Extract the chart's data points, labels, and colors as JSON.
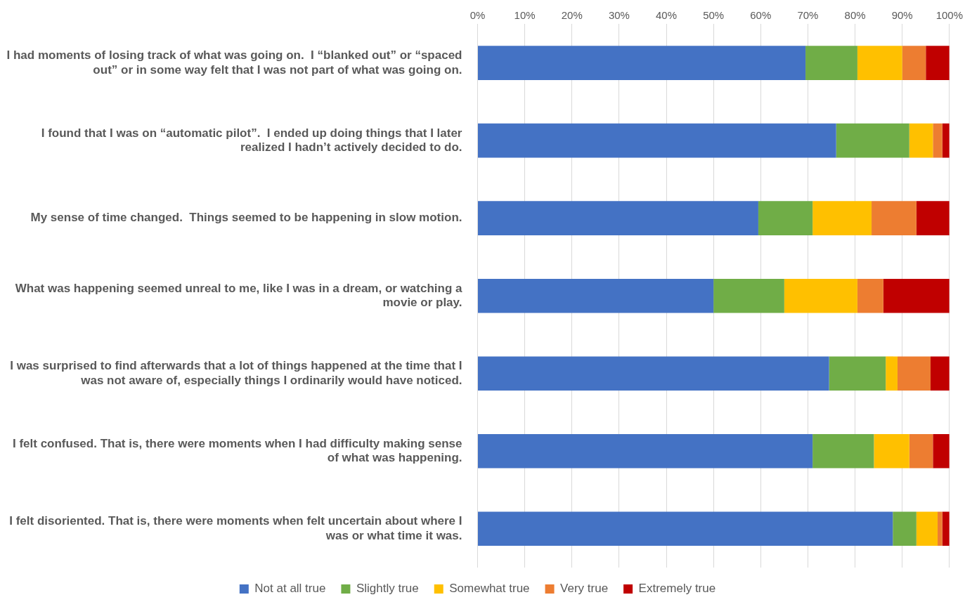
{
  "chart_data": {
    "type": "bar",
    "orientation": "horizontal",
    "stacked": true,
    "categories": [
      "I had moments of losing track of what was going on.  I “blanked out” or “spaced out” or in some way felt that I was not part of what was going on.",
      "I found that I was on “automatic pilot”.  I ended up doing things that I later realized I hadn’t actively decided to do.",
      "My sense of time changed.  Things seemed to be happening in slow motion.",
      "What was happening seemed unreal to me, like I was in a dream, or watching a movie or play.",
      "I was surprised to find afterwards that a lot of things happened at the time that I was not aware of, especially things I ordinarily would have noticed.",
      "I felt confused. That is, there were moments when I had difficulty making sense of what was happening.",
      "I felt disoriented. That is, there were moments when felt uncertain about where I was or what time it was."
    ],
    "series": [
      {
        "name": "Not at all true",
        "color": "#4472c4",
        "values": [
          69.5,
          76,
          59.5,
          50,
          74.5,
          71,
          88
        ]
      },
      {
        "name": "Slightly true",
        "color": "#70ad47",
        "values": [
          11,
          15.5,
          11.5,
          15,
          12,
          13,
          5
        ]
      },
      {
        "name": "Somewhat true",
        "color": "#ffc000",
        "values": [
          9.5,
          5,
          12.5,
          15.5,
          2.5,
          7.5,
          4.5
        ]
      },
      {
        "name": "Very true",
        "color": "#ed7d31",
        "values": [
          5,
          2,
          9.5,
          5.5,
          7,
          5,
          1
        ]
      },
      {
        "name": "Extremely true",
        "color": "#c00000",
        "values": [
          5,
          1.5,
          7,
          14,
          4,
          3.5,
          1.5
        ]
      }
    ],
    "xlim": [
      0,
      100
    ],
    "xticks": [
      {
        "value": 0,
        "label": "0%"
      },
      {
        "value": 10,
        "label": "10%"
      },
      {
        "value": 20,
        "label": "20%"
      },
      {
        "value": 30,
        "label": "30%"
      },
      {
        "value": 40,
        "label": "40%"
      },
      {
        "value": 50,
        "label": "50%"
      },
      {
        "value": 60,
        "label": "60%"
      },
      {
        "value": 70,
        "label": "70%"
      },
      {
        "value": 80,
        "label": "80%"
      },
      {
        "value": 90,
        "label": "90%"
      },
      {
        "value": 100,
        "label": "100%"
      }
    ],
    "grid": "x",
    "legend": "bottom"
  }
}
